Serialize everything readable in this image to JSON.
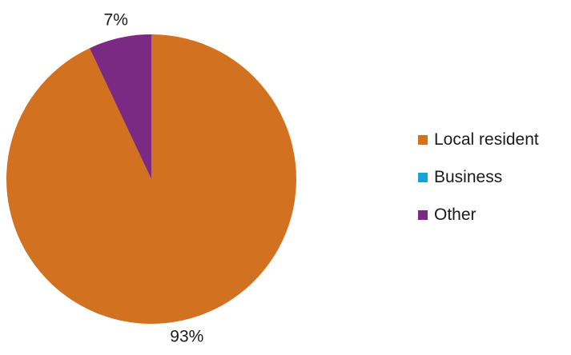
{
  "chart_data": {
    "type": "pie",
    "categories": [
      "Local resident",
      "Business",
      "Other"
    ],
    "values": [
      93,
      0,
      7
    ],
    "data_labels": [
      "93%",
      "",
      "7%"
    ],
    "colors": [
      "#D2711F",
      "#1AA0D8",
      "#7B2A83"
    ],
    "title": "",
    "legend_position": "right",
    "legend": [
      {
        "label": "Local resident",
        "color": "#D2711F"
      },
      {
        "label": "Business",
        "color": "#1AA0D8"
      },
      {
        "label": "Other",
        "color": "#7B2A83"
      }
    ]
  }
}
